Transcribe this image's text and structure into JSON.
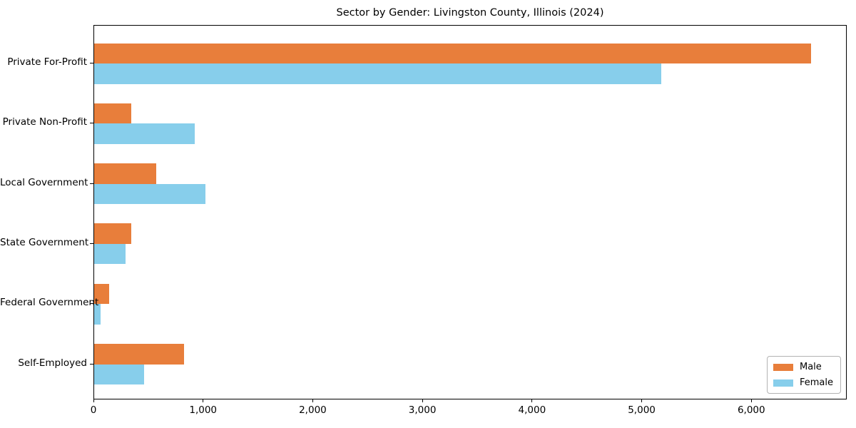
{
  "chart_data": {
    "type": "bar",
    "orientation": "horizontal",
    "title": "Sector by Gender: Livingston County, Illinois (2024)",
    "categories": [
      "Private For-Profit",
      "Private Non-Profit",
      "Local Government",
      "State Government",
      "Federal Government",
      "Self-Employed"
    ],
    "series": [
      {
        "name": "Male",
        "color": "#e87e3b",
        "values": [
          6535,
          340,
          565,
          340,
          135,
          820
        ]
      },
      {
        "name": "Female",
        "color": "#87ceeb",
        "values": [
          5170,
          920,
          1015,
          285,
          60,
          455
        ]
      }
    ],
    "xlabel": "",
    "ylabel": "",
    "xlim": [
      0,
      6870
    ],
    "xticks": [
      0,
      1000,
      2000,
      3000,
      4000,
      5000,
      6000
    ],
    "xtick_labels": [
      "0",
      "1,000",
      "2,000",
      "3,000",
      "4,000",
      "5,000",
      "6,000"
    ],
    "grid": false,
    "legend_position": "lower right",
    "background_color": "#ffffff",
    "axis_color": "#000000",
    "legend_border_color": "#b3b3b3"
  }
}
